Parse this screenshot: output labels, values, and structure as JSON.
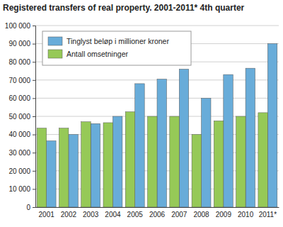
{
  "chart_data": {
    "type": "bar",
    "title": "Registered transfers of real property. 2001-2011* 4th quarter",
    "categories": [
      "2001",
      "2002",
      "2003",
      "2004",
      "2005",
      "2006",
      "2007",
      "2008",
      "2009",
      "2010",
      "2011*"
    ],
    "series": [
      {
        "name": "Tinglyst beløp i millioner kroner",
        "color": "#68acd9",
        "values": [
          36500,
          40000,
          46000,
          50000,
          68000,
          70500,
          76000,
          60000,
          73000,
          76500,
          90000
        ]
      },
      {
        "name": "Antall omsetninger",
        "color": "#96c957",
        "values": [
          43500,
          43500,
          47000,
          46500,
          52500,
          50000,
          50000,
          40000,
          47500,
          50000,
          52000
        ]
      }
    ],
    "ylim": [
      0,
      100000
    ],
    "yticks": [
      0,
      {
        "value": 10000,
        "label": "10 000"
      },
      {
        "value": 20000,
        "label": "20 000"
      },
      {
        "value": 30000,
        "label": "30 000"
      },
      {
        "value": 40000,
        "label": "40 000"
      },
      {
        "value": 50000,
        "label": "50 000"
      },
      {
        "value": 60000,
        "label": "60 000"
      },
      {
        "value": 70000,
        "label": "70 000"
      },
      {
        "value": 80000,
        "label": "80 000"
      },
      {
        "value": 90000,
        "label": "90 000"
      },
      {
        "value": 100000,
        "label": "100 000"
      }
    ],
    "grid": true,
    "legend": "upper left"
  }
}
